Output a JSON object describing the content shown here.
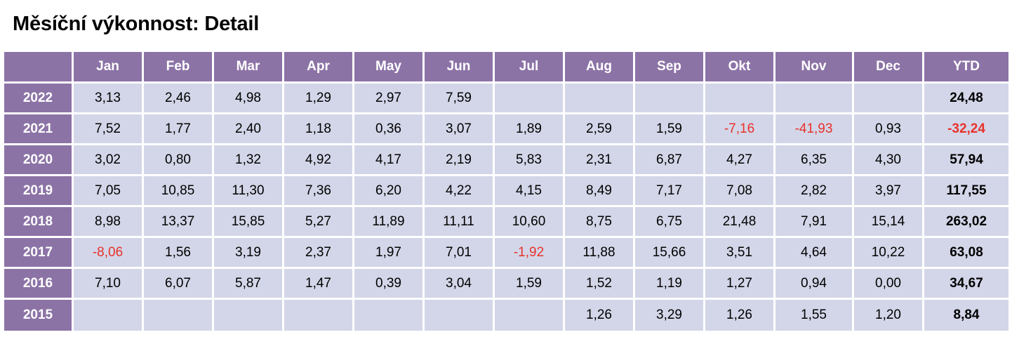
{
  "title": "Měsíční výkonnost: Detail",
  "columns": [
    "",
    "Jan",
    "Feb",
    "Mar",
    "Apr",
    "May",
    "Jun",
    "Jul",
    "Aug",
    "Sep",
    "Okt",
    "Nov",
    "Dec",
    "YTD"
  ],
  "rows": [
    {
      "year": "2022",
      "values": [
        "3,13",
        "2,46",
        "4,98",
        "1,29",
        "2,97",
        "7,59",
        "",
        "",
        "",
        "",
        "",
        ""
      ],
      "ytd": "24,48"
    },
    {
      "year": "2021",
      "values": [
        "7,52",
        "1,77",
        "2,40",
        "1,18",
        "0,36",
        "3,07",
        "1,89",
        "2,59",
        "1,59",
        "-7,16",
        "-41,93",
        "0,93"
      ],
      "ytd": "-32,24"
    },
    {
      "year": "2020",
      "values": [
        "3,02",
        "0,80",
        "1,32",
        "4,92",
        "4,17",
        "2,19",
        "5,83",
        "2,31",
        "6,87",
        "4,27",
        "6,35",
        "4,30"
      ],
      "ytd": "57,94"
    },
    {
      "year": "2019",
      "values": [
        "7,05",
        "10,85",
        "11,30",
        "7,36",
        "6,20",
        "4,22",
        "4,15",
        "8,49",
        "7,17",
        "7,08",
        "2,82",
        "3,97"
      ],
      "ytd": "117,55"
    },
    {
      "year": "2018",
      "values": [
        "8,98",
        "13,37",
        "15,85",
        "5,27",
        "11,89",
        "11,11",
        "10,60",
        "8,75",
        "6,75",
        "21,48",
        "7,91",
        "15,14"
      ],
      "ytd": "263,02"
    },
    {
      "year": "2017",
      "values": [
        "-8,06",
        "1,56",
        "3,19",
        "2,37",
        "1,97",
        "7,01",
        "-1,92",
        "11,88",
        "15,66",
        "3,51",
        "4,64",
        "10,22"
      ],
      "ytd": "63,08"
    },
    {
      "year": "2016",
      "values": [
        "7,10",
        "6,07",
        "5,87",
        "1,47",
        "0,39",
        "3,04",
        "1,59",
        "1,52",
        "1,19",
        "1,27",
        "0,94",
        "0,00"
      ],
      "ytd": "34,67"
    },
    {
      "year": "2015",
      "values": [
        "",
        "",
        "",
        "",
        "",
        "",
        "",
        "1,26",
        "3,29",
        "1,26",
        "1,55",
        "1,20"
      ],
      "ytd": "8,84"
    }
  ],
  "colors": {
    "header_bg": "#8c73a6",
    "cell_bg": "#d3d6e8",
    "negative": "#e8322b"
  }
}
